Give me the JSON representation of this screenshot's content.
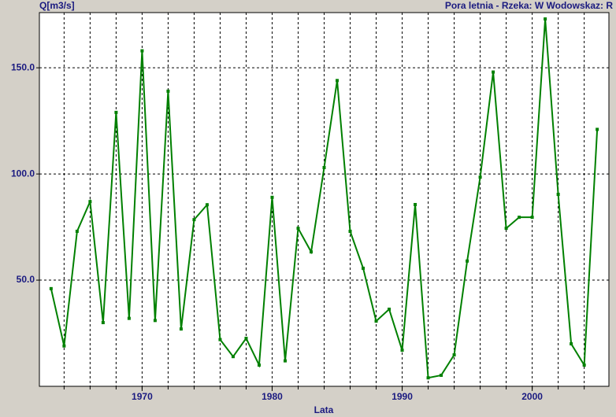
{
  "chart_data": {
    "type": "line",
    "y_label": "Q[m3/s]",
    "title": "Pora letnia - Rzeka: W Wodowskaz: R",
    "x_label": "Lata",
    "x": [
      1963,
      1964,
      1965,
      1966,
      1967,
      1968,
      1969,
      1970,
      1971,
      1972,
      1973,
      1974,
      1975,
      1976,
      1977,
      1978,
      1979,
      1980,
      1981,
      1982,
      1983,
      1984,
      1985,
      1986,
      1987,
      1988,
      1989,
      1990,
      1991,
      1992,
      1993,
      1994,
      1995,
      1996,
      1997,
      1998,
      1999,
      2000,
      2001,
      2002,
      2003,
      2004,
      2005
    ],
    "series": [
      {
        "color": "#008000",
        "values": [
          46,
          19,
          73,
          87,
          30,
          129,
          32,
          158,
          31,
          139,
          27,
          78.5,
          85.5,
          22,
          14,
          22.6,
          10,
          89,
          12,
          74.4,
          63.3,
          103,
          144,
          73,
          55.6,
          30.7,
          36.3,
          17,
          85.6,
          4,
          5.2,
          14.8,
          59,
          98.5,
          148,
          74.4,
          79.6,
          79.6,
          173,
          90.4,
          20,
          10,
          121
        ]
      }
    ],
    "xlim": [
      1962.1,
      2005.9
    ],
    "xticks": [
      1970,
      1980,
      1990,
      2000
    ],
    "xgrid": [
      1964,
      1966,
      1968,
      1970,
      1972,
      1974,
      1976,
      1978,
      1980,
      1982,
      1984,
      1986,
      1988,
      1990,
      1992,
      1994,
      1996,
      1998,
      2000,
      2002,
      2004
    ],
    "ylim": [
      0,
      176
    ],
    "yticks": [
      {
        "value": 50,
        "label": "50.0"
      },
      {
        "value": 100,
        "label": "100.0"
      },
      {
        "value": 150,
        "label": "150.0"
      }
    ],
    "grid": true
  }
}
